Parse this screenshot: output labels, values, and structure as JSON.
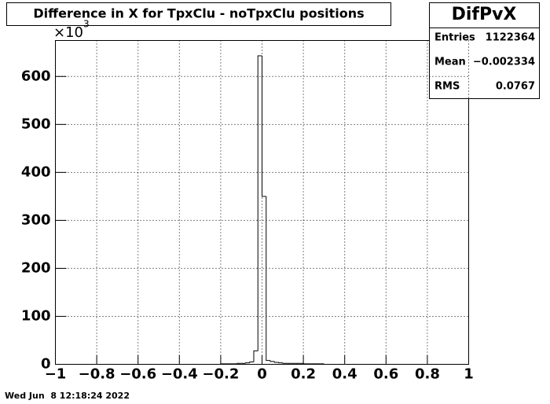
{
  "chart_data": {
    "type": "histogram",
    "title": "Difference in X for TpxClu - noTpxClu positions",
    "y_multiplier": {
      "base": "×10",
      "exponent": "3"
    },
    "bins": [
      -1,
      -0.98,
      -0.96,
      -0.94,
      -0.92,
      -0.9,
      -0.88,
      -0.86,
      -0.84,
      -0.82,
      -0.8,
      -0.78,
      -0.76,
      -0.74,
      -0.72,
      -0.7,
      -0.68,
      -0.66,
      -0.64,
      -0.62,
      -0.6,
      -0.58,
      -0.56,
      -0.54,
      -0.52,
      -0.5,
      -0.48,
      -0.46,
      -0.44,
      -0.42,
      -0.4,
      -0.38,
      -0.36,
      -0.34,
      -0.32,
      -0.3,
      -0.28,
      -0.26,
      -0.24,
      -0.22,
      -0.2,
      -0.18,
      -0.16,
      -0.14,
      -0.12,
      -0.1,
      -0.08,
      -0.06,
      -0.04,
      -0.02,
      0,
      0.02,
      0.04,
      0.06,
      0.08,
      0.1,
      0.12,
      0.14,
      0.16,
      0.18,
      0.2,
      0.22,
      0.24,
      0.26,
      0.28,
      0.3,
      0.32,
      0.34,
      0.36,
      0.38,
      0.4,
      0.42,
      0.44,
      0.46,
      0.48,
      0.5,
      0.52,
      0.54,
      0.56,
      0.58,
      0.6,
      0.62,
      0.64,
      0.66,
      0.68,
      0.7,
      0.72,
      0.74,
      0.76,
      0.78,
      0.8,
      0.82,
      0.84,
      0.86,
      0.88,
      0.9,
      0.92,
      0.94,
      0.96,
      0.98,
      1
    ],
    "values": [
      0,
      0,
      0,
      0,
      0,
      0,
      0,
      0,
      0,
      0,
      0,
      0,
      0,
      0,
      0,
      0,
      0,
      0,
      0,
      0,
      0,
      0,
      0,
      0,
      0,
      0,
      0,
      0,
      0,
      0,
      0,
      0,
      0,
      0,
      0,
      0,
      0,
      0,
      0,
      0,
      1,
      1,
      1,
      1,
      2,
      2,
      3,
      5,
      28,
      643,
      350,
      8,
      6,
      4,
      3,
      2,
      2,
      2,
      2,
      2,
      1,
      1,
      1,
      1,
      1,
      0,
      0,
      0,
      0,
      0,
      0,
      0,
      0,
      0,
      0,
      0,
      0,
      0,
      0,
      0,
      0,
      0,
      0,
      0,
      0,
      0,
      0,
      0,
      0,
      0,
      0,
      0,
      0,
      0,
      0,
      0,
      0,
      0,
      0,
      0
    ],
    "color": "#000000",
    "xlim": [
      -1,
      1
    ],
    "xticks": [
      {
        "value": -1,
        "label": "−1"
      },
      {
        "value": -0.8,
        "label": "−0.8"
      },
      {
        "value": -0.6,
        "label": "−0.6"
      },
      {
        "value": -0.4,
        "label": "−0.4"
      },
      {
        "value": -0.2,
        "label": "−0.2"
      },
      0,
      0.2,
      0.4,
      0.6,
      0.8,
      1
    ],
    "ylim": [
      0,
      675
    ],
    "yticks": [
      0,
      100,
      200,
      300,
      400,
      500,
      600
    ],
    "grid": true,
    "stats": {
      "name": "DifPvX",
      "rows": [
        {
          "label": "Entries",
          "value": "1122364"
        },
        {
          "label": "Mean",
          "value": "−0.002334"
        },
        {
          "label": "RMS",
          "value": "0.0767"
        }
      ]
    },
    "footer": "Wed Jun  8 12:18:24 2022"
  }
}
